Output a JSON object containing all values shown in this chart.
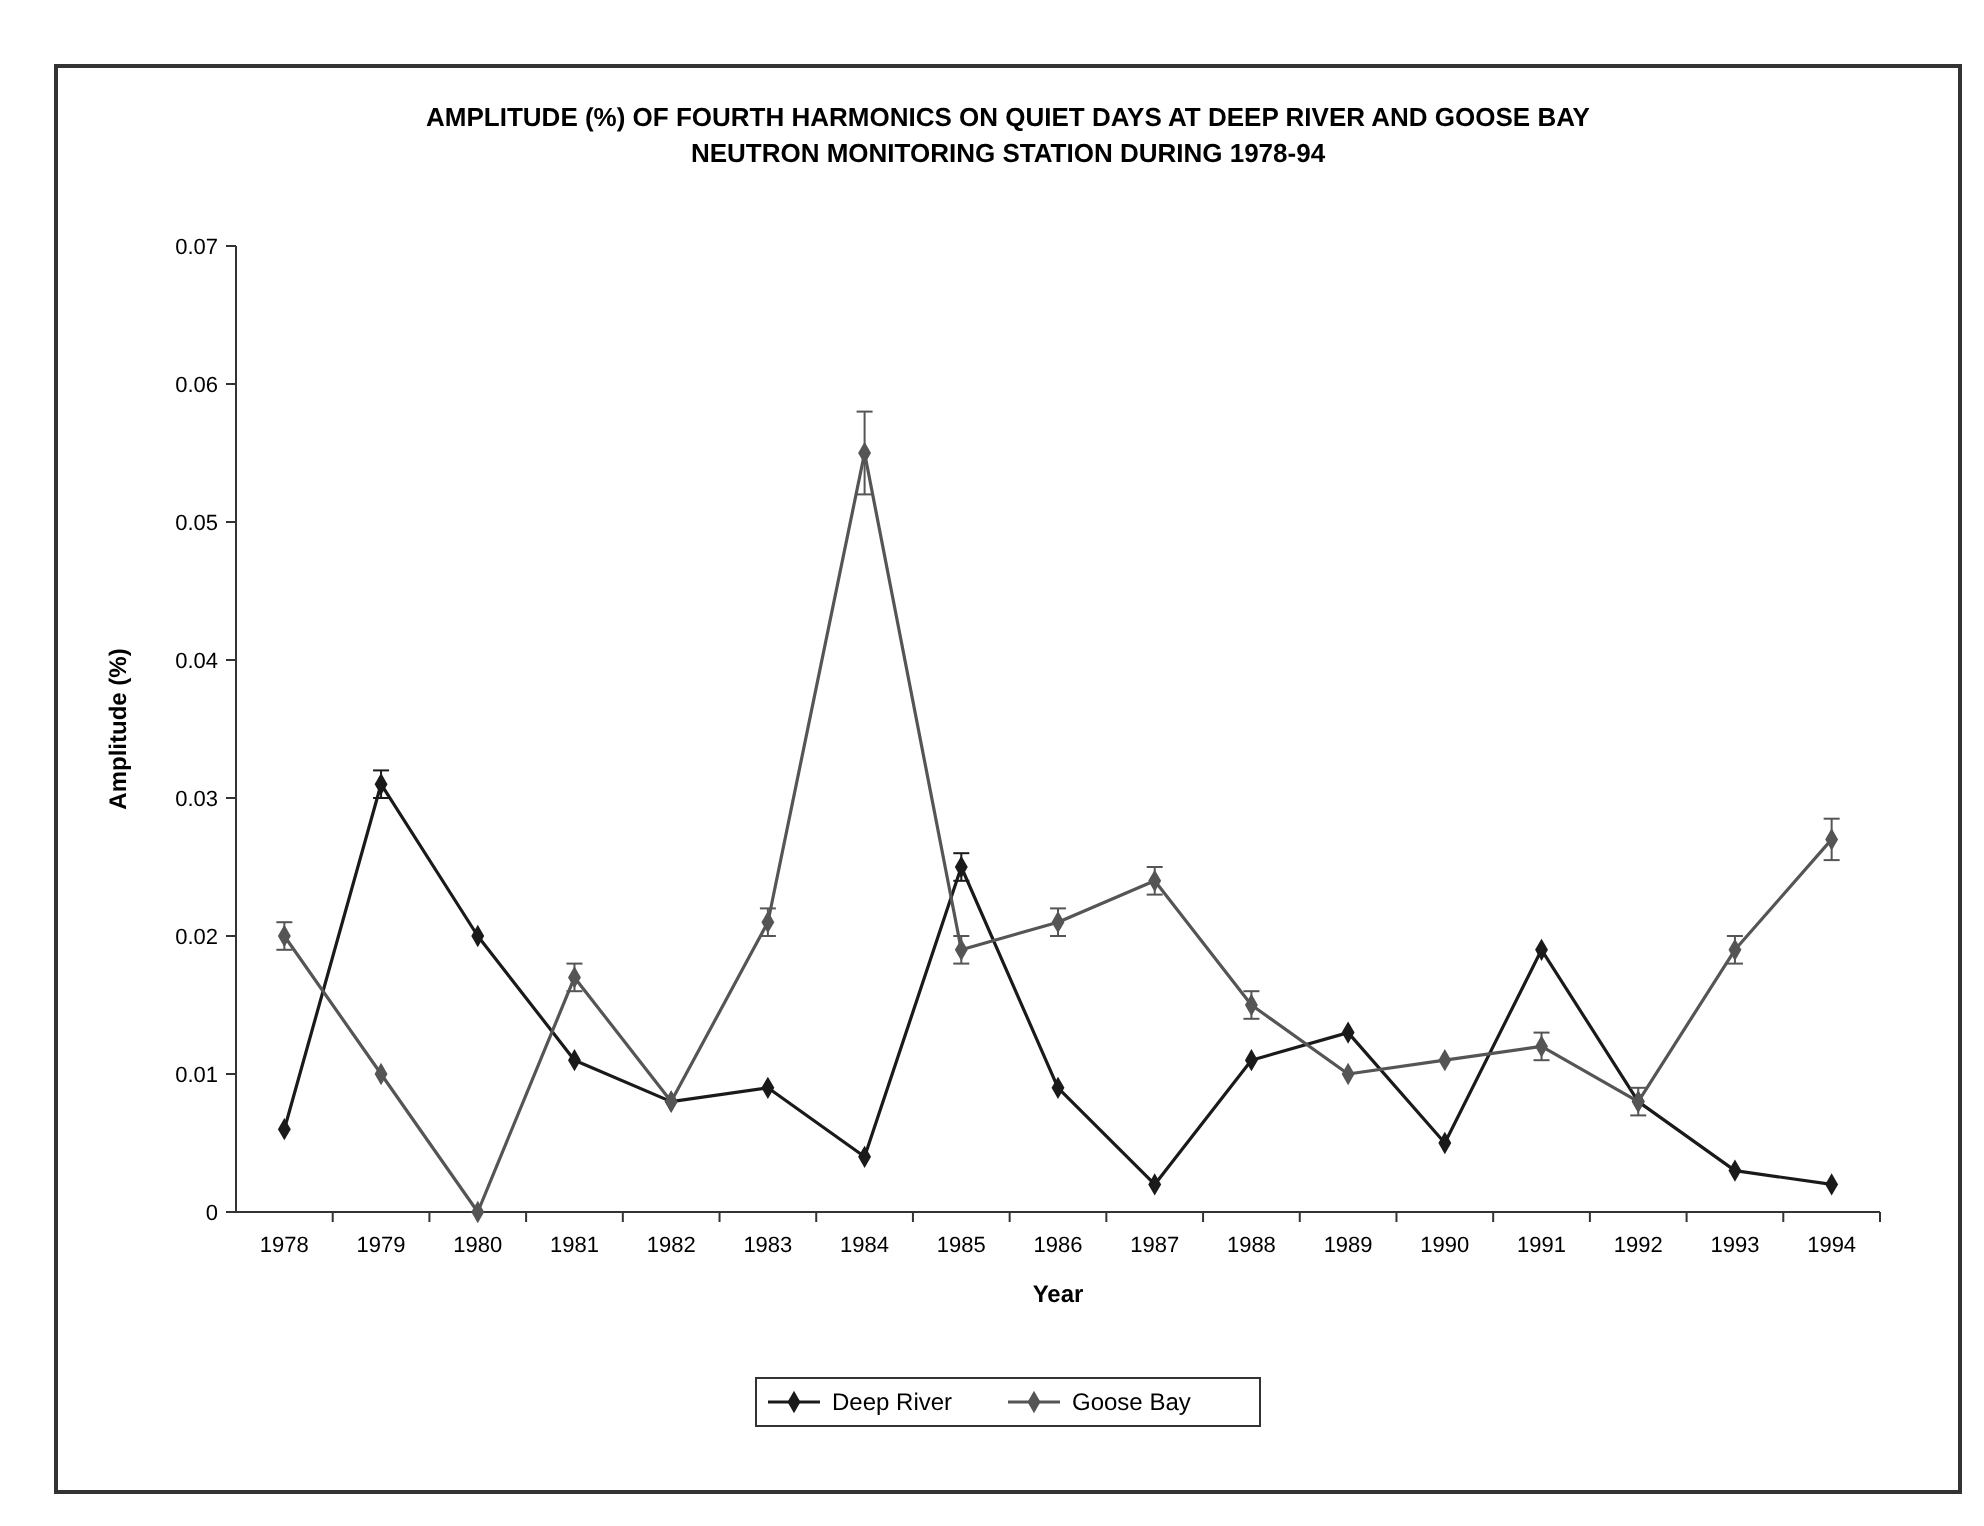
{
  "chart_data": {
    "type": "line",
    "title": "AMPLITUDE (%) OF FOURTH HARMONICS ON QUIET DAYS AT DEEP RIVER AND GOOSE BAY\nNEUTRON MONITORING STATION DURING 1978-94",
    "xlabel": "Year",
    "ylabel": "Amplitude (%)",
    "categories": [
      "1978",
      "1979",
      "1980",
      "1981",
      "1982",
      "1983",
      "1984",
      "1985",
      "1986",
      "1987",
      "1988",
      "1989",
      "1990",
      "1991",
      "1992",
      "1993",
      "1994"
    ],
    "series": [
      {
        "name": "Deep River",
        "color": "#1a1a1a",
        "values": [
          0.006,
          0.031,
          0.02,
          0.011,
          0.008,
          0.009,
          0.004,
          0.025,
          0.009,
          0.002,
          0.011,
          0.013,
          0.005,
          0.019,
          0.008,
          0.003,
          0.002
        ],
        "errors": [
          null,
          0.001,
          null,
          null,
          null,
          null,
          null,
          0.001,
          null,
          null,
          null,
          null,
          null,
          null,
          null,
          null,
          null
        ]
      },
      {
        "name": "Goose Bay",
        "color": "#555555",
        "values": [
          0.02,
          0.01,
          0.0,
          0.017,
          0.008,
          0.021,
          0.055,
          0.019,
          0.021,
          0.024,
          0.015,
          0.01,
          0.011,
          0.012,
          0.008,
          0.019,
          0.027
        ],
        "errors": [
          0.001,
          null,
          null,
          0.001,
          null,
          0.001,
          0.003,
          0.001,
          0.001,
          0.001,
          0.001,
          null,
          null,
          0.001,
          0.001,
          0.001,
          0.0015
        ]
      }
    ],
    "ylim": [
      0,
      0.07
    ],
    "yticks": [
      0,
      0.01,
      0.02,
      0.03,
      0.04,
      0.05,
      0.06,
      0.07
    ],
    "grid": false,
    "legend": "bottom",
    "marker": "diamond",
    "line_style": "solid"
  }
}
